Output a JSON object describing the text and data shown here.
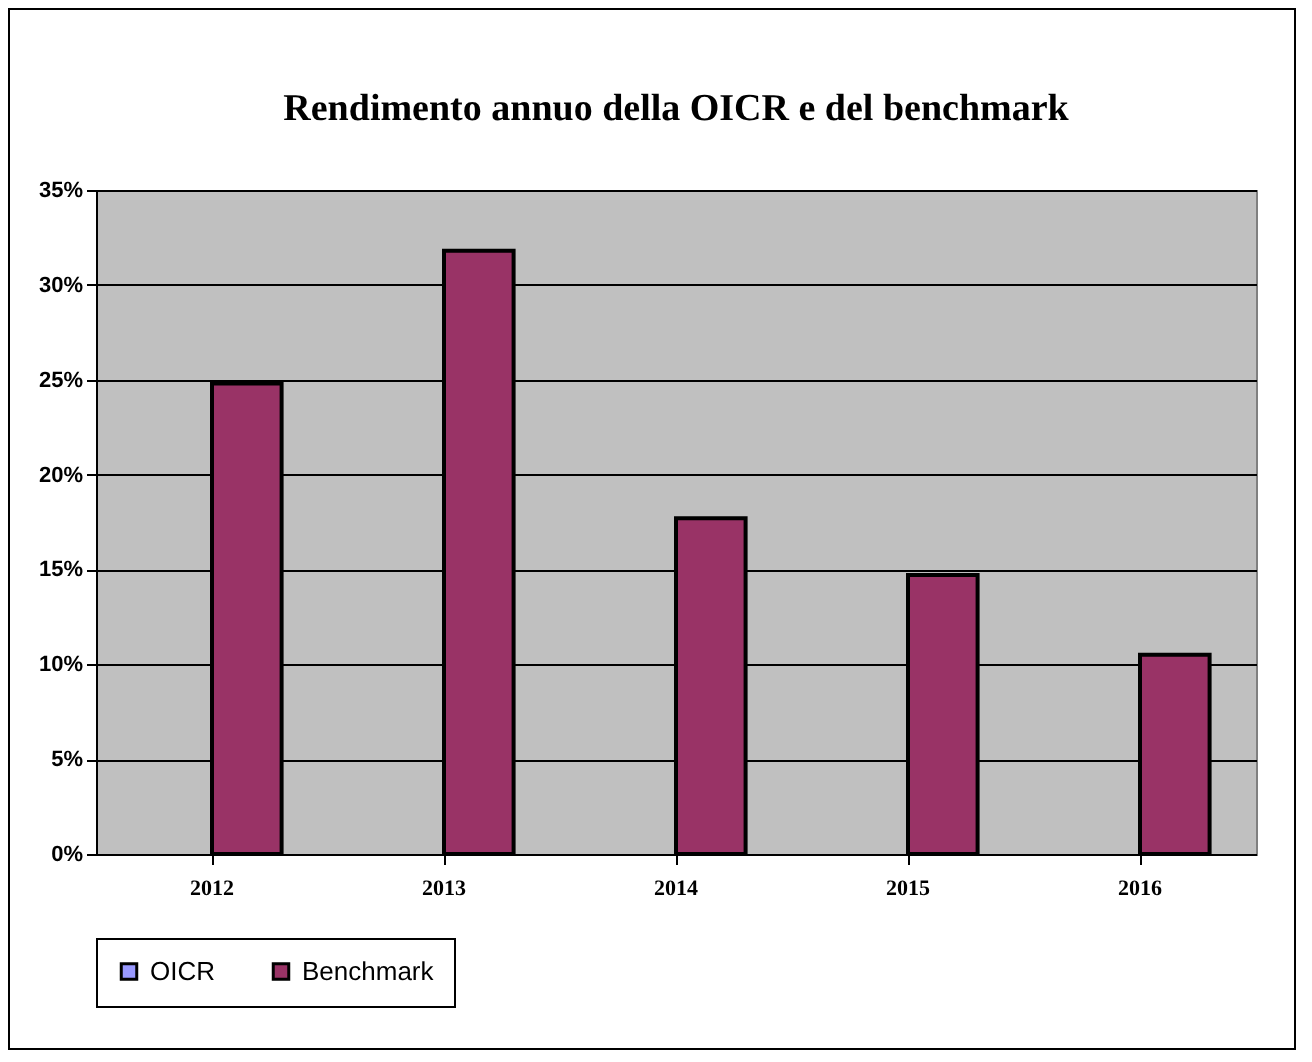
{
  "chart_data": {
    "type": "bar",
    "title": "Rendimento annuo della OICR e del benchmark",
    "categories": [
      "2012",
      "2013",
      "2014",
      "2015",
      "2016"
    ],
    "series": [
      {
        "name": "OICR",
        "color": "#9999ff",
        "values": [
          null,
          null,
          null,
          null,
          null
        ]
      },
      {
        "name": "Benchmark",
        "color": "#993366",
        "values": [
          24.8,
          31.8,
          17.7,
          14.7,
          10.5
        ]
      }
    ],
    "ylim": [
      0,
      35
    ],
    "yticks": [
      {
        "value": 0,
        "label": "0%"
      },
      {
        "value": 5,
        "label": "5%"
      },
      {
        "value": 10,
        "label": "10%"
      },
      {
        "value": 15,
        "label": "15%"
      },
      {
        "value": 20,
        "label": "20%"
      },
      {
        "value": 25,
        "label": "25%"
      },
      {
        "value": 30,
        "label": "30%"
      },
      {
        "value": 35,
        "label": "35%"
      }
    ],
    "grid": "y",
    "legend": "bottom"
  }
}
